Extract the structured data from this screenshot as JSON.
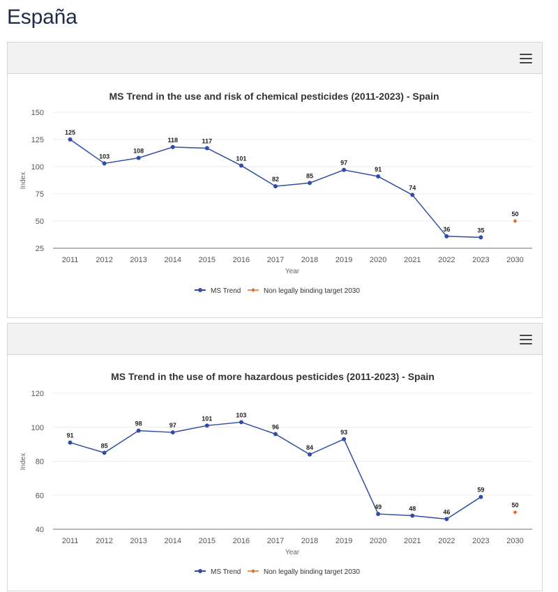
{
  "page": {
    "title": "España"
  },
  "colors": {
    "series": "#2f4da5",
    "target": "#e26d2f",
    "grid": "#ececec",
    "axis": "#6f6f6f",
    "panel": "#f2f2f2"
  },
  "icons": {
    "menu": "menu-icon"
  },
  "charts": {
    "risk": {
      "title": "MS Trend in the use and risk of chemical pesticides (2011-2023) - Spain",
      "xlabel": "Year",
      "ylabel": "Index",
      "legend": {
        "series": "MS Trend",
        "target": "Non legally binding target 2030"
      },
      "chart_data": {
        "type": "line",
        "title": "MS Trend in the use and risk of chemical pesticides (2011-2023) - Spain",
        "xlabel": "Year",
        "ylabel": "Index",
        "categories": [
          "2011",
          "2012",
          "2013",
          "2014",
          "2015",
          "2016",
          "2017",
          "2018",
          "2019",
          "2020",
          "2021",
          "2022",
          "2023",
          "2030"
        ],
        "ylim": [
          25,
          150
        ],
        "yticks": [
          25,
          50,
          75,
          100,
          125,
          150
        ],
        "grid": true,
        "legend_position": "bottom-center",
        "series": [
          {
            "name": "MS Trend",
            "values": [
              125,
              103,
              108,
              118,
              117,
              101,
              82,
              85,
              97,
              91,
              74,
              36,
              35,
              null
            ],
            "color": "#2f4da5"
          },
          {
            "name": "Non legally binding target 2030",
            "values": [
              null,
              null,
              null,
              null,
              null,
              null,
              null,
              null,
              null,
              null,
              null,
              null,
              null,
              50
            ],
            "color": "#e26d2f"
          }
        ]
      }
    },
    "hazardous": {
      "title": "MS Trend in the use of more hazardous pesticides (2011-2023) - Spain",
      "xlabel": "Year",
      "ylabel": "Index",
      "legend": {
        "series": "MS Trend",
        "target": "Non legally binding target 2030"
      },
      "chart_data": {
        "type": "line",
        "title": "MS Trend in the use of more hazardous pesticides (2011-2023) - Spain",
        "xlabel": "Year",
        "ylabel": "Index",
        "categories": [
          "2011",
          "2012",
          "2013",
          "2014",
          "2015",
          "2016",
          "2017",
          "2018",
          "2019",
          "2020",
          "2021",
          "2022",
          "2023",
          "2030"
        ],
        "ylim": [
          40,
          120
        ],
        "yticks": [
          40,
          60,
          80,
          100,
          120
        ],
        "grid": true,
        "legend_position": "bottom-center",
        "series": [
          {
            "name": "MS Trend",
            "values": [
              91,
              85,
              98,
              97,
              101,
              103,
              96,
              84,
              93,
              49,
              48,
              46,
              59,
              null
            ],
            "color": "#2f4da5"
          },
          {
            "name": "Non legally binding target 2030",
            "values": [
              null,
              null,
              null,
              null,
              null,
              null,
              null,
              null,
              null,
              null,
              null,
              null,
              null,
              50
            ],
            "color": "#e26d2f"
          }
        ]
      }
    }
  }
}
